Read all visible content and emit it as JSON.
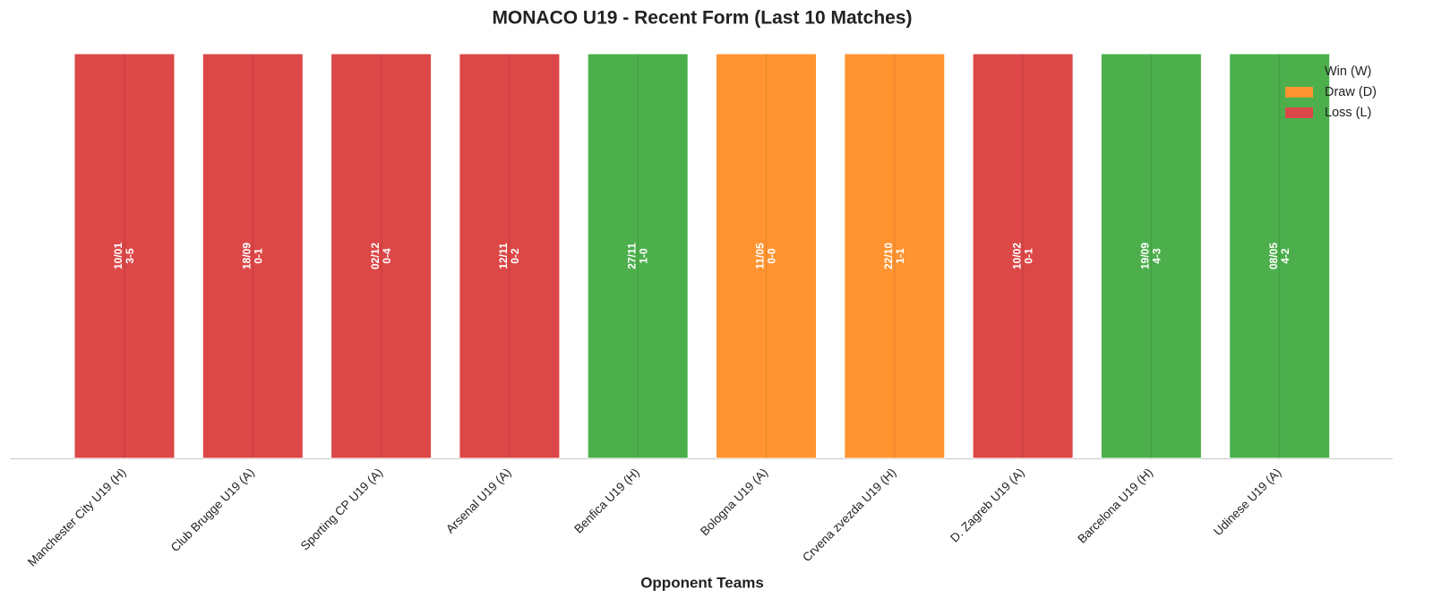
{
  "chart_data": {
    "type": "bar",
    "title": "MONACO U19 - Recent Form (Last 10 Matches)",
    "x_label": "Opponent Teams",
    "categories": [
      "Manchester City U19 (H)",
      "Club Brugge U19 (A)",
      "Sporting CP U19 (A)",
      "Arsenal U19 (A)",
      "Benfica U19 (H)",
      "Bologna U19 (A)",
      "Crvena zvezda U19 (H)",
      "D. Zagreb U19 (A)",
      "Barcelona U19 (H)",
      "Udinese U19 (A)"
    ],
    "labels": [
      [
        "10/01",
        "3-5"
      ],
      [
        "18/09",
        "0-1"
      ],
      [
        "02/12",
        "0-4"
      ],
      [
        "12/11",
        "0-2"
      ],
      [
        "27/11",
        "1-0"
      ],
      [
        "11/05",
        "0-0"
      ],
      [
        "22/10",
        "1-1"
      ],
      [
        "10/02",
        "0-1"
      ],
      [
        "19/09",
        "4-3"
      ],
      [
        "08/05",
        "4-2"
      ]
    ],
    "series": [
      {
        "name": "Win (W)",
        "color": "#4caf4c",
        "values": [
          null,
          null,
          null,
          null,
          1,
          null,
          null,
          null,
          1,
          1
        ]
      },
      {
        "name": "Draw (D)",
        "color": "#ff9430",
        "values": [
          null,
          null,
          null,
          null,
          null,
          1,
          1,
          null,
          null,
          null
        ]
      },
      {
        "name": "Loss (L)",
        "color": "#dc4747",
        "values": [
          1,
          1,
          1,
          1,
          null,
          null,
          null,
          1,
          null,
          null
        ]
      }
    ],
    "ylim": [
      0,
      1
    ],
    "legend": "upper right"
  }
}
